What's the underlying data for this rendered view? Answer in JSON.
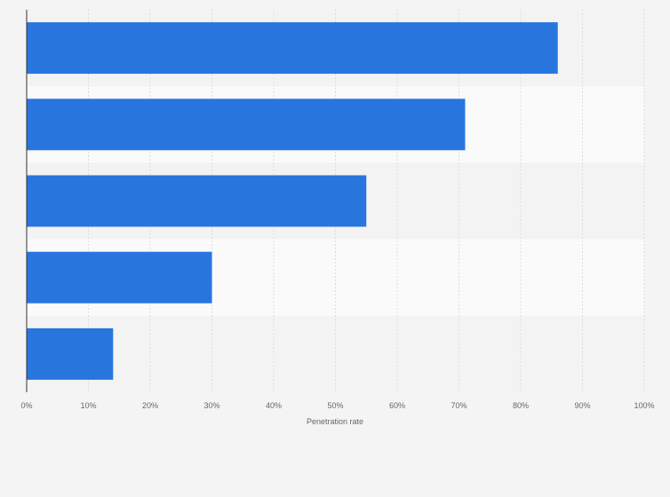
{
  "chart_data": {
    "type": "bar",
    "orientation": "horizontal",
    "categories": [
      "",
      "",
      "",
      "",
      ""
    ],
    "values": [
      86,
      71,
      55,
      30,
      14
    ],
    "xlabel": "Penetration rate",
    "ylabel": "",
    "xlim": [
      0,
      100
    ],
    "x_ticks": [
      "0%",
      "10%",
      "20%",
      "30%",
      "40%",
      "50%",
      "60%",
      "70%",
      "80%",
      "90%",
      "100%"
    ],
    "value_unit": "%",
    "grid": true,
    "legend": "none",
    "colors": {
      "bar": "#2875de",
      "background": "#f4f4f4",
      "band_light": "#fafafa",
      "band_dark": "#f3f3f3",
      "grid": "#dddddd",
      "axis": "#333333",
      "text": "#666666"
    }
  }
}
